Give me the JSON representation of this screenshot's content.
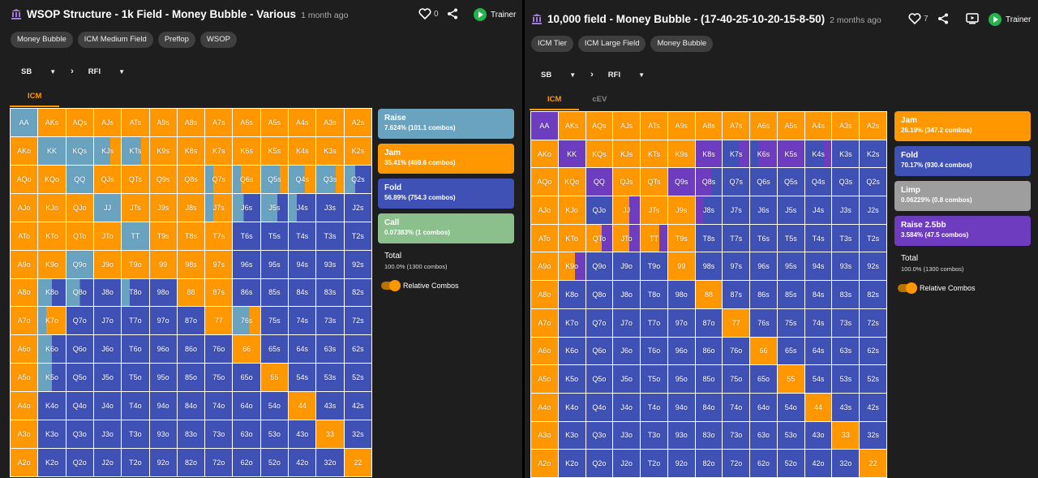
{
  "colors": {
    "raise": "#6aa3c0",
    "jam": "#ff9800",
    "fold": "#3f51b5",
    "call": "#8bbf8c",
    "limp": "#9e9e9e",
    "raise25": "#6e3cbe"
  },
  "icons": [
    "library-icon",
    "heart-icon",
    "share-icon",
    "video-icon",
    "play-icon",
    "chevron-right-icon",
    "caret-down-icon"
  ],
  "ranks": [
    "A",
    "K",
    "Q",
    "J",
    "T",
    "9",
    "8",
    "7",
    "6",
    "5",
    "4",
    "3",
    "2"
  ],
  "left": {
    "title": "WSOP Structure - 1k Field - Money Bubble - Various",
    "ago": "1 month ago",
    "likes": "0",
    "trainer": "Trainer",
    "tags": [
      "Money Bubble",
      "ICM Medium Field",
      "Preflop",
      "WSOP"
    ],
    "position": "SB",
    "action": "RFI",
    "tabs": [
      "ICM"
    ],
    "legend": [
      {
        "name": "Raise",
        "pct": "7.624% (101.1 combos)",
        "color": "raise"
      },
      {
        "name": "Jam",
        "pct": "35.41% (469.6 combos)",
        "color": "jam"
      },
      {
        "name": "Fold",
        "pct": "56.89% (754.3 combos)",
        "color": "fold"
      },
      {
        "name": "Call",
        "pct": "0.07383% (1 combos)",
        "color": "call"
      }
    ],
    "total_label": "Total",
    "total_value": "100.0% (1300 combos)",
    "relative_combos": "Relative Combos",
    "strategy": {
      "AA": [
        [
          "raise",
          1
        ]
      ],
      "AK": [
        [
          "jam",
          1
        ]
      ],
      "AQ": [
        [
          "jam",
          1
        ]
      ],
      "AJ": [
        [
          "jam",
          1
        ]
      ],
      "AT": [
        [
          "jam",
          1
        ]
      ],
      "A9": [
        [
          "jam",
          1
        ]
      ],
      "A8": [
        [
          "jam",
          1
        ]
      ],
      "A7": [
        [
          "jam",
          1
        ]
      ],
      "A6": [
        [
          "jam",
          1
        ]
      ],
      "A5": [
        [
          "jam",
          1
        ]
      ],
      "A4": [
        [
          "jam",
          1
        ]
      ],
      "A3": [
        [
          "jam",
          1
        ]
      ],
      "A2": [
        [
          "jam",
          1
        ]
      ],
      "AKo": [
        [
          "jam",
          1
        ]
      ],
      "KK": [
        [
          "raise",
          1
        ]
      ],
      "KQs": [
        [
          "raise",
          1
        ]
      ],
      "KJs": [
        [
          "raise",
          0.6
        ],
        [
          "jam",
          0.4
        ]
      ],
      "KTs": [
        [
          "raise",
          0.7
        ],
        [
          "jam",
          0.3
        ]
      ],
      "K9s": [
        [
          "jam",
          1
        ]
      ],
      "K8s": [
        [
          "jam",
          1
        ]
      ],
      "K7s": [
        [
          "jam",
          1
        ]
      ],
      "K6s": [
        [
          "jam",
          1
        ]
      ],
      "K5s": [
        [
          "jam",
          1
        ]
      ],
      "K4s": [
        [
          "jam",
          1
        ]
      ],
      "K3s": [
        [
          "jam",
          1
        ]
      ],
      "K2s": [
        [
          "jam",
          1
        ]
      ],
      "AQo": [
        [
          "jam",
          1
        ]
      ],
      "KQo": [
        [
          "jam",
          1
        ]
      ],
      "QQ": [
        [
          "raise",
          1
        ]
      ],
      "QJs": [
        [
          "jam",
          1
        ]
      ],
      "QTs": [
        [
          "jam",
          1
        ]
      ],
      "Q9s": [
        [
          "jam",
          1
        ]
      ],
      "Q8s": [
        [
          "jam",
          1
        ]
      ],
      "Q7s": [
        [
          "raise",
          0.3
        ],
        [
          "jam",
          0.7
        ]
      ],
      "Q6s": [
        [
          "raise",
          0.3
        ],
        [
          "jam",
          0.7
        ]
      ],
      "Q5s": [
        [
          "raise",
          0.7
        ],
        [
          "jam",
          0.3
        ]
      ],
      "Q4s": [
        [
          "raise",
          0.6
        ],
        [
          "jam",
          0.4
        ]
      ],
      "Q3s": [
        [
          "raise",
          0.7
        ],
        [
          "jam",
          0.3
        ]
      ],
      "Q2s": [
        [
          "raise",
          0.4
        ],
        [
          "fold",
          0.6
        ]
      ],
      "AJo": [
        [
          "jam",
          1
        ]
      ],
      "KJo": [
        [
          "jam",
          1
        ]
      ],
      "QJo": [
        [
          "jam",
          1
        ]
      ],
      "JJ": [
        [
          "raise",
          1
        ]
      ],
      "JTs": [
        [
          "jam",
          1
        ]
      ],
      "J9s": [
        [
          "jam",
          1
        ]
      ],
      "J8s": [
        [
          "jam",
          1
        ]
      ],
      "J7s": [
        [
          "raise",
          0.3
        ],
        [
          "jam",
          0.7
        ]
      ],
      "J6s": [
        [
          "raise",
          0.4
        ],
        [
          "fold",
          0.6
        ]
      ],
      "J5s": [
        [
          "raise",
          0.6
        ],
        [
          "fold",
          0.4
        ]
      ],
      "J4s": [
        [
          "raise",
          0.3
        ],
        [
          "fold",
          0.7
        ]
      ],
      "J3s": [
        [
          "fold",
          1
        ]
      ],
      "J2s": [
        [
          "fold",
          1
        ]
      ],
      "ATo": [
        [
          "jam",
          1
        ]
      ],
      "KTo": [
        [
          "jam",
          1
        ]
      ],
      "QTo": [
        [
          "jam",
          1
        ]
      ],
      "JTo": [
        [
          "jam",
          1
        ]
      ],
      "TT": [
        [
          "raise",
          1
        ]
      ],
      "T9s": [
        [
          "jam",
          1
        ]
      ],
      "T8s": [
        [
          "jam",
          1
        ]
      ],
      "T7s": [
        [
          "jam",
          1
        ]
      ],
      "T6s": [
        [
          "fold",
          1
        ]
      ],
      "T5s": [
        [
          "fold",
          1
        ]
      ],
      "T4s": [
        [
          "fold",
          1
        ]
      ],
      "T3s": [
        [
          "fold",
          1
        ]
      ],
      "T2s": [
        [
          "fold",
          1
        ]
      ],
      "A9o": [
        [
          "jam",
          1
        ]
      ],
      "K9o": [
        [
          "jam",
          1
        ]
      ],
      "Q9o": [
        [
          "raise",
          1
        ]
      ],
      "J9o": [
        [
          "jam",
          1
        ]
      ],
      "T9o": [
        [
          "jam",
          1
        ]
      ],
      "99": [
        [
          "jam",
          1
        ]
      ],
      "98s": [
        [
          "jam",
          1
        ]
      ],
      "97s": [
        [
          "jam",
          1
        ]
      ],
      "96s": [
        [
          "fold",
          1
        ]
      ],
      "95s": [
        [
          "fold",
          1
        ]
      ],
      "94s": [
        [
          "fold",
          1
        ]
      ],
      "93s": [
        [
          "fold",
          1
        ]
      ],
      "92s": [
        [
          "fold",
          1
        ]
      ],
      "A8o": [
        [
          "jam",
          1
        ]
      ],
      "K8o": [
        [
          "raise",
          0.5
        ],
        [
          "fold",
          0.5
        ]
      ],
      "Q8o": [
        [
          "raise",
          0.5
        ],
        [
          "fold",
          0.5
        ]
      ],
      "J8o": [
        [
          "fold",
          1
        ]
      ],
      "T8o": [
        [
          "raise",
          0.3
        ],
        [
          "fold",
          0.7
        ]
      ],
      "98o": [
        [
          "fold",
          1
        ]
      ],
      "88": [
        [
          "jam",
          1
        ]
      ],
      "87s": [
        [
          "jam",
          1
        ]
      ],
      "86s": [
        [
          "fold",
          1
        ]
      ],
      "85s": [
        [
          "fold",
          1
        ]
      ],
      "84s": [
        [
          "fold",
          1
        ]
      ],
      "83s": [
        [
          "fold",
          1
        ]
      ],
      "82s": [
        [
          "fold",
          1
        ]
      ],
      "A7o": [
        [
          "jam",
          1
        ]
      ],
      "K7o": [
        [
          "raise",
          0.3
        ],
        [
          "jam",
          0.7
        ]
      ],
      "Q7o": [
        [
          "fold",
          1
        ]
      ],
      "J7o": [
        [
          "fold",
          1
        ]
      ],
      "T7o": [
        [
          "fold",
          1
        ]
      ],
      "97o": [
        [
          "fold",
          1
        ]
      ],
      "87o": [
        [
          "fold",
          1
        ]
      ],
      "77": [
        [
          "jam",
          1
        ]
      ],
      "76s": [
        [
          "raise",
          0.6
        ],
        [
          "jam",
          0.4
        ]
      ],
      "75s": [
        [
          "fold",
          1
        ]
      ],
      "74s": [
        [
          "fold",
          1
        ]
      ],
      "73s": [
        [
          "fold",
          1
        ]
      ],
      "72s": [
        [
          "fold",
          1
        ]
      ],
      "A6o": [
        [
          "jam",
          1
        ]
      ],
      "K6o": [
        [
          "raise",
          0.5
        ],
        [
          "fold",
          0.5
        ]
      ],
      "Q6o": [
        [
          "fold",
          1
        ]
      ],
      "J6o": [
        [
          "fold",
          1
        ]
      ],
      "T6o": [
        [
          "fold",
          1
        ]
      ],
      "96o": [
        [
          "fold",
          1
        ]
      ],
      "86o": [
        [
          "fold",
          1
        ]
      ],
      "76o": [
        [
          "fold",
          1
        ]
      ],
      "66": [
        [
          "jam",
          1
        ]
      ],
      "65s": [
        [
          "fold",
          1
        ]
      ],
      "64s": [
        [
          "fold",
          1
        ]
      ],
      "63s": [
        [
          "fold",
          1
        ]
      ],
      "62s": [
        [
          "fold",
          1
        ]
      ],
      "A5o": [
        [
          "jam",
          1
        ]
      ],
      "K5o": [
        [
          "raise",
          0.5
        ],
        [
          "fold",
          0.5
        ]
      ],
      "Q5o": [
        [
          "fold",
          1
        ]
      ],
      "J5o": [
        [
          "fold",
          1
        ]
      ],
      "T5o": [
        [
          "fold",
          1
        ]
      ],
      "95o": [
        [
          "fold",
          1
        ]
      ],
      "85o": [
        [
          "fold",
          1
        ]
      ],
      "75o": [
        [
          "fold",
          1
        ]
      ],
      "65o": [
        [
          "fold",
          1
        ]
      ],
      "55": [
        [
          "jam",
          1
        ]
      ],
      "54s": [
        [
          "fold",
          1
        ]
      ],
      "53s": [
        [
          "fold",
          1
        ]
      ],
      "52s": [
        [
          "fold",
          1
        ]
      ],
      "A4o": [
        [
          "jam",
          1
        ]
      ],
      "K4o": [
        [
          "fold",
          1
        ]
      ],
      "Q4o": [
        [
          "fold",
          1
        ]
      ],
      "J4o": [
        [
          "fold",
          1
        ]
      ],
      "T4o": [
        [
          "fold",
          1
        ]
      ],
      "94o": [
        [
          "fold",
          1
        ]
      ],
      "84o": [
        [
          "fold",
          1
        ]
      ],
      "74o": [
        [
          "fold",
          1
        ]
      ],
      "64o": [
        [
          "fold",
          1
        ]
      ],
      "54o": [
        [
          "fold",
          1
        ]
      ],
      "44": [
        [
          "jam",
          1
        ]
      ],
      "43s": [
        [
          "fold",
          1
        ]
      ],
      "42s": [
        [
          "fold",
          1
        ]
      ],
      "A3o": [
        [
          "jam",
          1
        ]
      ],
      "K3o": [
        [
          "fold",
          1
        ]
      ],
      "Q3o": [
        [
          "fold",
          1
        ]
      ],
      "J3o": [
        [
          "fold",
          1
        ]
      ],
      "T3o": [
        [
          "fold",
          1
        ]
      ],
      "93o": [
        [
          "fold",
          1
        ]
      ],
      "83o": [
        [
          "fold",
          1
        ]
      ],
      "73o": [
        [
          "fold",
          1
        ]
      ],
      "63o": [
        [
          "fold",
          1
        ]
      ],
      "53o": [
        [
          "fold",
          1
        ]
      ],
      "43o": [
        [
          "fold",
          1
        ]
      ],
      "33": [
        [
          "jam",
          1
        ]
      ],
      "32s": [
        [
          "fold",
          1
        ]
      ],
      "A2o": [
        [
          "jam",
          1
        ]
      ],
      "K2o": [
        [
          "fold",
          1
        ]
      ],
      "Q2o": [
        [
          "fold",
          1
        ]
      ],
      "J2o": [
        [
          "fold",
          1
        ]
      ],
      "T2o": [
        [
          "fold",
          1
        ]
      ],
      "92o": [
        [
          "fold",
          1
        ]
      ],
      "82o": [
        [
          "fold",
          1
        ]
      ],
      "72o": [
        [
          "fold",
          1
        ]
      ],
      "62o": [
        [
          "fold",
          1
        ]
      ],
      "52o": [
        [
          "fold",
          1
        ]
      ],
      "42o": [
        [
          "fold",
          1
        ]
      ],
      "32o": [
        [
          "fold",
          1
        ]
      ],
      "22": [
        [
          "jam",
          1
        ]
      ]
    }
  },
  "right": {
    "title": "10,000 field - Money Bubble - (17-40-25-10-20-15-8-50)",
    "ago": "2 months ago",
    "likes": "7",
    "trainer": "Trainer",
    "tags": [
      "ICM Tier",
      "ICM Large Field",
      "Money Bubble"
    ],
    "position": "SB",
    "action": "RFI",
    "tabs": [
      "ICM",
      "cEV"
    ],
    "legend": [
      {
        "name": "Jam",
        "pct": "26.19% (347.2 combos)",
        "color": "jam"
      },
      {
        "name": "Fold",
        "pct": "70.17% (930.4 combos)",
        "color": "fold"
      },
      {
        "name": "Limp",
        "pct": "0.06229% (0.8 combos)",
        "color": "limp"
      },
      {
        "name": "Raise 2.5bb",
        "pct": "3.584% (47.5 combos)",
        "color": "raise25"
      }
    ],
    "total_label": "Total",
    "total_value": "100.0% (1300 combos)",
    "relative_combos": "Relative Combos",
    "strategy": {
      "AA": [
        [
          "raise25",
          1
        ]
      ],
      "KK": [
        [
          "raise25",
          1
        ]
      ],
      "K8s": [
        [
          "raise25",
          1
        ]
      ],
      "K7s": [
        [
          "fold",
          0.6
        ],
        [
          "raise25",
          0.4
        ]
      ],
      "K6s": [
        [
          "fold",
          0.3
        ],
        [
          "raise25",
          0.7
        ]
      ],
      "K5s": [
        [
          "raise25",
          1
        ]
      ],
      "K4s": [
        [
          "fold",
          0.7
        ],
        [
          "raise25",
          0.3
        ]
      ],
      "QQ": [
        [
          "raise25",
          1
        ]
      ],
      "Q9s": [
        [
          "raise25",
          1
        ]
      ],
      "Q8s": [
        [
          "raise25",
          0.6
        ],
        [
          "fold",
          0.4
        ]
      ],
      "JJ": [
        [
          "jam",
          0.6
        ],
        [
          "raise25",
          0.4
        ]
      ],
      "J8s": [
        [
          "raise25",
          0.3
        ],
        [
          "fold",
          0.7
        ]
      ],
      "QTo": [
        [
          "jam",
          0.6
        ],
        [
          "raise25",
          0.4
        ]
      ],
      "JTo": [
        [
          "jam",
          0.6
        ],
        [
          "raise25",
          0.4
        ]
      ],
      "TT": [
        [
          "jam",
          0.7
        ],
        [
          "raise25",
          0.3
        ]
      ],
      "T9s": [
        [
          "jam",
          1
        ]
      ],
      "K9o": [
        [
          "jam",
          0.6
        ],
        [
          "raise25",
          0.4
        ]
      ],
      "Q9o": [
        [
          "fold",
          1
        ]
      ],
      "J9o": [
        [
          "fold",
          1
        ]
      ],
      "T9o": [
        [
          "fold",
          1
        ]
      ],
      "99": [
        [
          "jam",
          1
        ]
      ],
      "K8o": [
        [
          "fold",
          1
        ]
      ],
      "K7o": [
        [
          "fold",
          1
        ]
      ],
      "K6o": [
        [
          "fold",
          1
        ]
      ],
      "K5o": [
        [
          "fold",
          1
        ]
      ],
      "88": [
        [
          "jam",
          1
        ]
      ],
      "77": [
        [
          "jam",
          1
        ]
      ],
      "66": [
        [
          "jam",
          1
        ]
      ],
      "55": [
        [
          "jam",
          1
        ]
      ],
      "44": [
        [
          "jam",
          1
        ]
      ],
      "33": [
        [
          "jam",
          1
        ]
      ],
      "22": [
        [
          "jam",
          1
        ]
      ],
      "98s": [
        [
          "fold",
          1
        ]
      ],
      "97s": [
        [
          "fold",
          1
        ]
      ],
      "87s": [
        [
          "fold",
          1
        ]
      ],
      "T8s": [
        [
          "fold",
          1
        ]
      ],
      "T7s": [
        [
          "fold",
          1
        ]
      ],
      "J7s": [
        [
          "fold",
          1
        ]
      ],
      "Q7s": [
        [
          "fold",
          1
        ]
      ],
      "Q6s": [
        [
          "fold",
          1
        ]
      ],
      "_default_suited_top": "jam",
      "_default_other": "fold"
    }
  }
}
